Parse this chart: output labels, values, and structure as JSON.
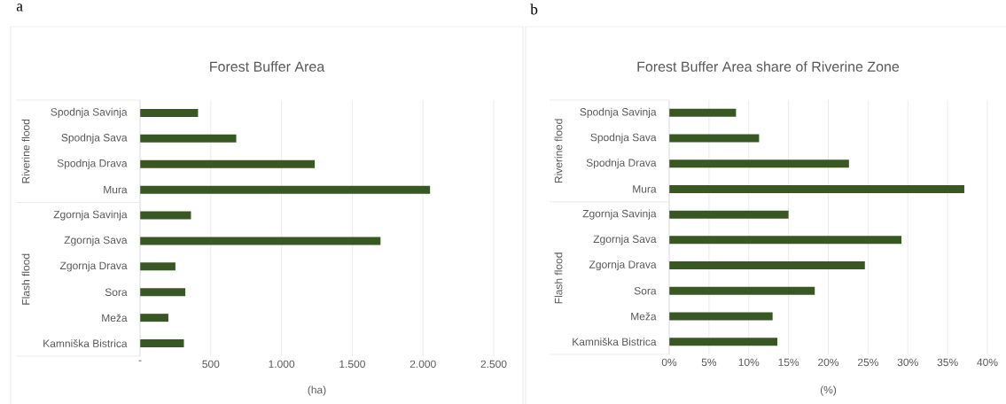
{
  "chart_data": [
    {
      "type": "bar",
      "orientation": "horizontal",
      "title": "Forest Buffer Area",
      "xlabel": "(ha)",
      "color": "#385723",
      "grid": "x",
      "categories": [
        "Spodnja Savinja",
        "Spodnja Sava",
        "Spodnja Drava",
        "Mura",
        "Zgornja Savinja",
        "Zgornja Sava",
        "Zgornja Drava",
        "Sora",
        "Meža",
        "Kamniška Bistrica"
      ],
      "values": [
        410,
        680,
        1235,
        2050,
        360,
        1700,
        250,
        320,
        200,
        310
      ],
      "xlim": [
        0,
        2500
      ],
      "xticks": [
        {
          "value": 0,
          "label": "-"
        },
        500,
        {
          "value": 1000,
          "label": "1.000"
        },
        {
          "value": 1500,
          "label": "1.500"
        },
        {
          "value": 2000,
          "label": "2.000"
        },
        {
          "value": 2500,
          "label": "2.500"
        }
      ],
      "annotations": [
        "a",
        "Riverine flood",
        "Flash flood"
      ]
    },
    {
      "type": "bar",
      "orientation": "horizontal",
      "title": "Forest Buffer Area share of Riverine Zone",
      "xlabel": "(%)",
      "color": "#385723",
      "grid": "x",
      "categories": [
        "Spodnja Savinja",
        "Spodnja Sava",
        "Spodnja Drava",
        "Mura",
        "Zgornja Savinja",
        "Zgornja Sava",
        "Zgornja Drava",
        "Sora",
        "Meža",
        "Kamniška Bistrica"
      ],
      "values": [
        8.4,
        11.3,
        22.6,
        37.1,
        15.0,
        29.2,
        24.6,
        18.3,
        13.0,
        13.6
      ],
      "xlim": [
        0,
        40
      ],
      "xticks": [
        {
          "value": 0,
          "label": "0%"
        },
        {
          "value": 5,
          "label": "5%"
        },
        {
          "value": 10,
          "label": "10%"
        },
        {
          "value": 15,
          "label": "15%"
        },
        {
          "value": 20,
          "label": "20%"
        },
        {
          "value": 25,
          "label": "25%"
        },
        {
          "value": 30,
          "label": "30%"
        },
        {
          "value": 35,
          "label": "35%"
        },
        {
          "value": 40,
          "label": "40%"
        }
      ],
      "annotations": [
        "b",
        "Riverine flood",
        "Flash flood"
      ]
    }
  ]
}
